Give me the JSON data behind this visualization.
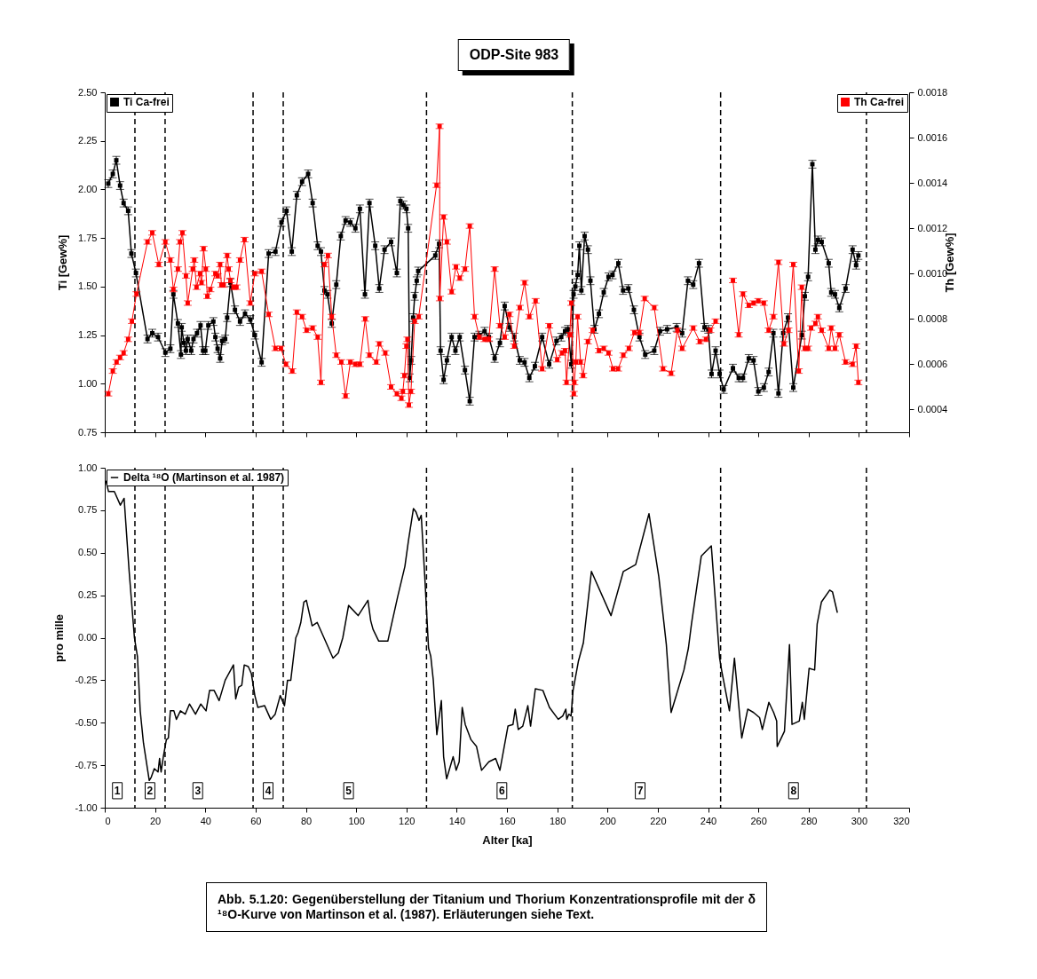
{
  "chart_data": [
    {
      "type": "line",
      "title": "ODP-Site 983",
      "ylabel": "Ti [Gew%]",
      "y2label": "Th [Gew%]",
      "xlim": [
        0,
        320
      ],
      "xticks": [
        0,
        20,
        40,
        60,
        80,
        100,
        120,
        140,
        160,
        180,
        200,
        220,
        240,
        260,
        280,
        300,
        320
      ],
      "ylim": [
        0.75,
        2.5
      ],
      "yticks": [
        0.75,
        {
          "value": 1,
          "label": "1.00"
        },
        1.25,
        {
          "value": 1.5,
          "label": "1.50"
        },
        1.75,
        {
          "value": 2,
          "label": "2.00"
        },
        2.25,
        {
          "value": 2.5,
          "label": "2.50"
        }
      ],
      "y2lim": [
        0.0003,
        0.0018
      ],
      "y2ticks": [
        0.0004,
        0.0006,
        0.0008,
        {
          "value": 0.001,
          "label": "0.0010"
        },
        0.0012,
        0.0014,
        0.0016,
        0.0018
      ],
      "tick_labels": "y",
      "legend": "top",
      "marker": "square",
      "line_style": "solid",
      "grid": false,
      "ref_lines": [
        {
          "axis": "x",
          "value": 12,
          "line_style": "dashed"
        },
        {
          "axis": "x",
          "value": 24,
          "line_style": "dashed"
        },
        {
          "axis": "x",
          "value": 59,
          "line_style": "dashed"
        },
        {
          "axis": "x",
          "value": 71,
          "line_style": "dashed"
        },
        {
          "axis": "x",
          "value": 128,
          "line_style": "dashed"
        },
        {
          "axis": "x",
          "value": 186,
          "line_style": "dashed"
        },
        {
          "axis": "x",
          "value": 245,
          "line_style": "dashed"
        },
        {
          "axis": "x",
          "value": 303,
          "line_style": "dashed"
        }
      ],
      "series": [
        {
          "name": "Ti Ca-frei",
          "color": "#000000",
          "x": [
            1.4,
            3.2,
            4.6,
            6.1,
            7.5,
            9.3,
            10.6,
            12.4,
            17.0,
            18.9,
            21.2,
            24.1,
            26.1,
            27.3,
            29.1,
            30.3,
            30.6,
            31.5,
            32.3,
            33.0,
            34.4,
            35.3,
            36.7,
            38.1,
            39.1,
            40.0,
            41.2,
            43.2,
            44.0,
            44.9,
            45.9,
            46.7,
            47.9,
            48.7,
            50.0,
            51.8,
            53.8,
            55.8,
            57.9,
            59.7,
            62.4,
            65.2,
            67.9,
            70.3,
            72.3,
            74.4,
            76.4,
            78.5,
            80.9,
            82.7,
            84.7,
            86.0,
            87.4,
            88.6,
            90.3,
            92.1,
            93.9,
            95.8,
            97.7,
            99.7,
            101.5,
            103.5,
            105.3,
            107.6,
            109.2,
            111.3,
            113.9,
            116.2,
            117.6,
            118.8,
            120.0,
            120.7,
            121.3,
            121.9,
            122.7,
            123.3,
            124.1,
            124.7,
            131.5,
            133.0,
            133.6,
            134.8,
            136.1,
            138.0,
            139.5,
            141.2,
            143.3,
            145.2,
            147.1,
            149.0,
            151.1,
            152.8,
            155.1,
            157.2,
            159.1,
            161.0,
            162.9,
            165.1,
            167.0,
            168.9,
            171.1,
            174.0,
            176.8,
            179.7,
            181.6,
            183.1,
            184.3,
            185.6,
            186.5,
            187.2,
            188.1,
            188.8,
            189.6,
            190.9,
            192.2,
            193.2,
            194.8,
            196.6,
            198.5,
            200.4,
            202.0,
            204.3,
            206.2,
            208.3,
            210.5,
            212.7,
            215.0,
            218.6,
            220.9,
            223.7,
            227.5,
            229.7,
            232.0,
            234.1,
            236.4,
            238.6,
            240.1,
            241.4,
            243.0,
            244.6,
            246.2,
            249.9,
            252.2,
            253.9,
            256.2,
            258.1,
            260.0,
            262.2,
            264.1,
            266.0,
            268.0,
            269.9,
            271.8,
            273.9,
            277.3,
            278.5,
            279.8,
            281.5,
            282.7,
            283.7,
            285.2,
            288.0,
            289.0,
            290.5,
            292.2,
            294.7,
            297.5,
            298.9,
            299.8
          ],
          "values": [
            2.03,
            2.08,
            2.15,
            2.02,
            1.93,
            1.89,
            1.67,
            1.57,
            1.23,
            1.26,
            1.24,
            1.16,
            1.18,
            1.46,
            1.31,
            1.15,
            1.29,
            1.21,
            1.17,
            1.23,
            1.17,
            1.23,
            1.26,
            1.3,
            1.17,
            1.17,
            1.3,
            1.32,
            1.24,
            1.18,
            1.13,
            1.22,
            1.23,
            1.34,
            1.52,
            1.38,
            1.32,
            1.36,
            1.33,
            1.25,
            1.11,
            1.67,
            1.68,
            1.83,
            1.89,
            1.68,
            1.97,
            2.04,
            2.08,
            1.93,
            1.71,
            1.68,
            1.48,
            1.46,
            1.31,
            1.51,
            1.76,
            1.84,
            1.83,
            1.8,
            1.9,
            1.46,
            1.93,
            1.71,
            1.49,
            1.69,
            1.73,
            1.57,
            1.94,
            1.92,
            1.9,
            1.8,
            1.03,
            1.12,
            1.34,
            1.45,
            1.53,
            1.58,
            1.66,
            1.72,
            1.17,
            1.02,
            1.12,
            1.24,
            1.17,
            1.24,
            1.07,
            0.91,
            1.24,
            1.25,
            1.27,
            1.24,
            1.13,
            1.21,
            1.4,
            1.29,
            1.24,
            1.12,
            1.11,
            1.03,
            1.09,
            1.24,
            1.1,
            1.22,
            1.24,
            1.27,
            1.28,
            1.1,
            1.46,
            1.5,
            1.56,
            1.71,
            1.48,
            1.76,
            1.69,
            1.53,
            1.28,
            1.36,
            1.47,
            1.55,
            1.56,
            1.62,
            1.48,
            1.49,
            1.38,
            1.24,
            1.15,
            1.17,
            1.27,
            1.28,
            1.29,
            1.26,
            1.53,
            1.51,
            1.62,
            1.29,
            1.28,
            1.05,
            1.17,
            1.05,
            0.97,
            1.08,
            1.03,
            1.03,
            1.13,
            1.12,
            0.96,
            0.98,
            1.06,
            1.26,
            0.95,
            1.26,
            1.34,
            0.98,
            1.25,
            1.45,
            1.55,
            2.13,
            1.69,
            1.74,
            1.73,
            1.62,
            1.47,
            1.46,
            1.39,
            1.49,
            1.69,
            1.61,
            1.66
          ],
          "errors": [
            0.02,
            0.02,
            0.02,
            0.02,
            0.02,
            0.02,
            0.02,
            0.02,
            0.02,
            0.02,
            0.02,
            0.02,
            0.02,
            0.02,
            0.02,
            0.02,
            0.02,
            0.02,
            0.02,
            0.02,
            0.02,
            0.02,
            0.02,
            0.02,
            0.02,
            0.02,
            0.02,
            0.02,
            0.02,
            0.02,
            0.02,
            0.02,
            0.02,
            0.02,
            0.02,
            0.02,
            0.02,
            0.02,
            0.02,
            0.02,
            0.02,
            0.02,
            0.02,
            0.02,
            0.02,
            0.02,
            0.02,
            0.02,
            0.02,
            0.02,
            0.02,
            0.02,
            0.02,
            0.02,
            0.02,
            0.02,
            0.02,
            0.02,
            0.02,
            0.02,
            0.02,
            0.02,
            0.02,
            0.02,
            0.02,
            0.02,
            0.02,
            0.02,
            0.02,
            0.02,
            0.02,
            0.02,
            0.02,
            0.02,
            0.02,
            0.02,
            0.02,
            0.02,
            0.02,
            0.02,
            0.02,
            0.02,
            0.02,
            0.02,
            0.02,
            0.02,
            0.02,
            0.02,
            0.02,
            0.02,
            0.02,
            0.02,
            0.02,
            0.02,
            0.02,
            0.02,
            0.02,
            0.02,
            0.02,
            0.02,
            0.02,
            0.02,
            0.02,
            0.02,
            0.02,
            0.02,
            0.02,
            0.02,
            0.02,
            0.02,
            0.02,
            0.02,
            0.02,
            0.02,
            0.02,
            0.02,
            0.02,
            0.02,
            0.02,
            0.02,
            0.02,
            0.02,
            0.02,
            0.02,
            0.02,
            0.02,
            0.02,
            0.02,
            0.02,
            0.02,
            0.02,
            0.02,
            0.02,
            0.02,
            0.02,
            0.02,
            0.02,
            0.02,
            0.02,
            0.02,
            0.02,
            0.02,
            0.02,
            0.02,
            0.02,
            0.02,
            0.02,
            0.02,
            0.02,
            0.02,
            0.02,
            0.02,
            0.02,
            0.02,
            0.02,
            0.02,
            0.02,
            0.02,
            0.02,
            0.02,
            0.02,
            0.02,
            0.02,
            0.02,
            0.02,
            0.02,
            0.02,
            0.02,
            0.02
          ]
        },
        {
          "name": "Th Ca-frei",
          "color": "#ff0000",
          "axis": "y2",
          "x": [
            1.4,
            3.2,
            4.7,
            6.1,
            7.5,
            9.3,
            10.8,
            12.6,
            17.0,
            18.9,
            21.5,
            24.1,
            26.1,
            27.3,
            29.1,
            29.9,
            30.9,
            32.3,
            33.0,
            35.0,
            35.6,
            36.5,
            37.9,
            38.5,
            39.3,
            40.2,
            40.8,
            42.0,
            44.0,
            44.9,
            45.9,
            46.4,
            47.3,
            48.7,
            49.3,
            50.0,
            51.2,
            52.4,
            53.8,
            55.6,
            57.9,
            59.7,
            62.4,
            65.2,
            67.9,
            70.1,
            72.1,
            74.6,
            76.4,
            78.5,
            80.3,
            82.7,
            84.7,
            86.0,
            87.4,
            88.8,
            90.3,
            92.1,
            94.1,
            95.8,
            97.7,
            99.7,
            101.5,
            103.6,
            105.3,
            108.0,
            109.2,
            111.6,
            113.9,
            116.2,
            118.0,
            118.6,
            119.2,
            120.0,
            120.4,
            121.0,
            121.8,
            123.3,
            124.9,
            132.0,
            133.2,
            133.3,
            134.8,
            136.1,
            138.0,
            139.7,
            141.2,
            143.3,
            145.2,
            147.1,
            149.0,
            151.1,
            152.8,
            155.1,
            157.2,
            159.1,
            161.0,
            162.9,
            165.1,
            167.0,
            168.9,
            171.4,
            174.0,
            176.8,
            180.0,
            181.9,
            183.1,
            183.7,
            185.0,
            185.6,
            186.6,
            186.8,
            187.4,
            188.1,
            189.3,
            190.3,
            192.2,
            194.1,
            196.6,
            198.5,
            200.4,
            202.2,
            204.2,
            206.3,
            208.5,
            210.7,
            212.7,
            214.8,
            218.6,
            222.1,
            225.3,
            227.8,
            229.7,
            234.1,
            236.7,
            239.2,
            240.9,
            243.0,
            247.0,
            249.9,
            252.2,
            253.9,
            256.2,
            258.1,
            260.0,
            262.2,
            264.1,
            266.0,
            268.0,
            270.2,
            272.0,
            273.9,
            276.1,
            277.3,
            278.5,
            279.8,
            281.0,
            282.7,
            283.7,
            285.2,
            288.0,
            289.0,
            290.5,
            292.2,
            294.7,
            297.5,
            298.9,
            299.8
          ],
          "values": [
            0.00047,
            0.00057,
            0.00061,
            0.00063,
            0.00065,
            0.00071,
            0.00079,
            0.00091,
            0.00114,
            0.00118,
            0.00104,
            0.00114,
            0.00106,
            0.00093,
            0.00102,
            0.00114,
            0.00118,
            0.00099,
            0.00087,
            0.00102,
            0.00106,
            0.00094,
            0.001,
            0.00096,
            0.00111,
            0.00102,
            0.0009,
            0.00093,
            0.001,
            0.00099,
            0.00104,
            0.00095,
            0.00095,
            0.00108,
            0.00102,
            0.00097,
            0.00094,
            0.00094,
            0.00106,
            0.00115,
            0.00087,
            0.001,
            0.00101,
            0.00082,
            0.00067,
            0.00067,
            0.0006,
            0.00057,
            0.00083,
            0.00081,
            0.00075,
            0.00076,
            0.00072,
            0.00052,
            0.00104,
            0.00108,
            0.00081,
            0.00064,
            0.00061,
            0.00046,
            0.00061,
            0.0006,
            0.0006,
            0.0008,
            0.00064,
            0.00061,
            0.00069,
            0.00065,
            0.0005,
            0.00047,
            0.00045,
            0.00048,
            0.00055,
            0.00068,
            0.00071,
            0.00042,
            0.00048,
            0.00079,
            0.00081,
            0.00139,
            0.00165,
            0.00089,
            0.00125,
            0.00114,
            0.00092,
            0.00103,
            0.00098,
            0.00102,
            0.00121,
            0.00081,
            0.00072,
            0.00071,
            0.00071,
            0.00102,
            0.00077,
            0.00072,
            0.00082,
            0.00068,
            0.00085,
            0.00096,
            0.00081,
            0.00088,
            0.00058,
            0.00077,
            0.00062,
            0.00065,
            0.00066,
            0.00052,
            0.00073,
            0.00087,
            0.00047,
            0.00052,
            0.00061,
            0.00081,
            0.00061,
            0.00055,
            0.0007,
            0.00075,
            0.00066,
            0.00067,
            0.00065,
            0.00058,
            0.00058,
            0.00064,
            0.00067,
            0.00074,
            0.00074,
            0.00089,
            0.00085,
            0.00058,
            0.00056,
            0.00075,
            0.00067,
            0.00076,
            0.0007,
            0.00071,
            0.00075,
            0.00079,
            null,
            0.00097,
            0.00073,
            0.00091,
            0.00086,
            0.00087,
            0.00088,
            0.00087,
            0.00075,
            0.00081,
            0.00105,
            0.00069,
            0.00075,
            0.00104,
            0.00057,
            0.00094,
            0.00067,
            0.00067,
            0.00076,
            0.00078,
            0.00081,
            0.00075,
            0.00067,
            0.00076,
            0.00067,
            0.00073,
            0.00061,
            0.0006,
            0.00068,
            0.00052
          ],
          "errors": [
            1e-05,
            1e-05,
            1e-05,
            1e-05,
            1e-05,
            1e-05,
            1e-05,
            1e-05,
            1e-05,
            1e-05,
            1e-05,
            1e-05,
            1e-05,
            1e-05,
            1e-05,
            1e-05,
            1e-05,
            1e-05,
            1e-05,
            1e-05,
            1e-05,
            1e-05,
            1e-05,
            1e-05,
            1e-05,
            1e-05,
            1e-05,
            1e-05,
            1e-05,
            1e-05,
            1e-05,
            1e-05,
            1e-05,
            1e-05,
            1e-05,
            1e-05,
            1e-05,
            1e-05,
            1e-05,
            1e-05,
            1e-05,
            1e-05,
            1e-05,
            1e-05,
            1e-05,
            1e-05,
            1e-05,
            1e-05,
            1e-05,
            1e-05,
            1e-05,
            1e-05,
            1e-05,
            1e-05,
            1e-05,
            1e-05,
            1e-05,
            1e-05,
            1e-05,
            1e-05,
            1e-05,
            1e-05,
            1e-05,
            1e-05,
            1e-05,
            1e-05,
            1e-05,
            1e-05,
            1e-05,
            1e-05,
            1e-05,
            1e-05,
            1e-05,
            1e-05,
            1e-05,
            1e-05,
            1e-05,
            1e-05,
            1e-05,
            1e-05,
            1e-05,
            1e-05,
            1e-05,
            1e-05,
            1e-05,
            1e-05,
            1e-05,
            1e-05,
            1e-05,
            1e-05,
            1e-05,
            1e-05,
            1e-05,
            1e-05,
            1e-05,
            1e-05,
            1e-05,
            1e-05,
            1e-05,
            1e-05,
            1e-05,
            1e-05,
            1e-05,
            1e-05,
            1e-05,
            1e-05,
            1e-05,
            1e-05,
            1e-05,
            1e-05,
            1e-05,
            1e-05,
            1e-05,
            1e-05,
            1e-05,
            1e-05,
            1e-05,
            1e-05,
            1e-05,
            1e-05,
            1e-05,
            1e-05,
            1e-05,
            1e-05,
            1e-05,
            1e-05,
            1e-05,
            1e-05,
            1e-05,
            1e-05,
            1e-05,
            1e-05,
            1e-05,
            1e-05,
            1e-05,
            1e-05,
            1e-05,
            1e-05,
            null,
            1e-05,
            1e-05,
            1e-05,
            1e-05,
            1e-05,
            1e-05,
            1e-05,
            1e-05,
            1e-05,
            1e-05,
            1e-05,
            1e-05,
            1e-05,
            1e-05,
            1e-05,
            1e-05,
            1e-05,
            1e-05,
            1e-05,
            1e-05,
            1e-05,
            1e-05,
            1e-05,
            1e-05,
            1e-05,
            1e-05,
            1e-05,
            1e-05,
            1e-05
          ]
        }
      ]
    },
    {
      "type": "line",
      "xlabel": "Alter [ka]",
      "ylabel": "pro mille",
      "xlim": [
        0,
        320
      ],
      "xticks": [
        0,
        20,
        40,
        60,
        80,
        100,
        120,
        140,
        160,
        180,
        200,
        220,
        240,
        260,
        280,
        300,
        320
      ],
      "ylim": [
        -1,
        1
      ],
      "yticks": [
        {
          "value": -1,
          "label": "-1.00"
        },
        -0.75,
        {
          "value": -0.5,
          "label": "-0.50"
        },
        -0.25,
        {
          "value": 0,
          "label": "0.00"
        },
        0.25,
        {
          "value": 0.5,
          "label": "0.50"
        },
        0.75,
        {
          "value": 1,
          "label": "1.00"
        }
      ],
      "legend": "top left",
      "line_style": "solid",
      "grid": false,
      "ref_lines": [
        {
          "axis": "x",
          "value": 12,
          "line_style": "dashed"
        },
        {
          "axis": "x",
          "value": 24,
          "line_style": "dashed"
        },
        {
          "axis": "x",
          "value": 59,
          "line_style": "dashed"
        },
        {
          "axis": "x",
          "value": 71,
          "line_style": "dashed"
        },
        {
          "axis": "x",
          "value": 128,
          "line_style": "dashed"
        },
        {
          "axis": "x",
          "value": 186,
          "line_style": "dashed"
        },
        {
          "axis": "x",
          "value": 245,
          "line_style": "dashed"
        },
        {
          "axis": "x",
          "value": 303,
          "line_style": "dashed"
        }
      ],
      "annotations": [
        {
          "text": "1",
          "x": 5,
          "y": -0.9
        },
        {
          "text": "2",
          "x": 18,
          "y": -0.9
        },
        {
          "text": "3",
          "x": 37,
          "y": -0.9
        },
        {
          "text": "4",
          "x": 65,
          "y": -0.9
        },
        {
          "text": "5",
          "x": 97,
          "y": -0.9
        },
        {
          "text": "6",
          "x": 158,
          "y": -0.9
        },
        {
          "text": "7",
          "x": 213,
          "y": -0.9
        },
        {
          "text": "8",
          "x": 274,
          "y": -0.9
        },
        "Abb. 5.1.20: Gegenüberstellung der Titanium und Thorium Konzentrationsprofile mit der δ ¹⁸O-Kurve von Martinson et al. (1987). Erläuterungen siehe Text."
      ],
      "series": [
        {
          "name": "Delta ¹⁸O (Martinson et al. 1987)",
          "color": "#000000",
          "x": [
            0.5,
            1.5,
            3.8,
            6.2,
            7.7,
            9.7,
            11.8,
            13.0,
            14.1,
            15.4,
            17.7,
            18.5,
            19.7,
            21.2,
            21.8,
            22.4,
            23.3,
            24.5,
            25.3,
            26.1,
            27.5,
            28.5,
            30.1,
            32.0,
            33.7,
            36.1,
            38.2,
            40.3,
            41.7,
            43.5,
            45.5,
            47.9,
            51.2,
            52.1,
            53.3,
            54.5,
            55.5,
            57.1,
            58.3,
            59.7,
            60.9,
            63.6,
            66.0,
            67.8,
            69.8,
            71.5,
            72.7,
            74.0,
            76.0,
            76.9,
            78.0,
            79.2,
            80.2,
            82.5,
            84.5,
            90.8,
            92.9,
            94.7,
            97.0,
            100.8,
            104.7,
            105.8,
            106.7,
            109.0,
            112.6,
            116.5,
            119.4,
            120.8,
            122.8,
            123.8,
            125.0,
            125.9,
            127.3,
            128.8,
            129.7,
            130.7,
            132.1,
            133.9,
            134.8,
            136.0,
            138.6,
            139.8,
            141.0,
            142.2,
            143.4,
            145.7,
            147.9,
            149.9,
            152.8,
            155.5,
            157.2,
            160.4,
            162.4,
            163.3,
            164.5,
            166.3,
            168.3,
            169.4,
            171.3,
            174.3,
            176.9,
            180.4,
            182.2,
            183.4,
            183.8,
            184.6,
            185.5,
            186.3,
            188.4,
            190.4,
            193.6,
            201.4,
            206.3,
            211.2,
            216.5,
            220.4,
            223.4,
            225.3,
            230.4,
            232.2,
            233.4,
            237.3,
            241.3,
            244.6,
            245.5,
            248.5,
            250.5,
            253.4,
            255.8,
            258.1,
            260.5,
            261.6,
            264.2,
            266.1,
            267.3,
            267.5,
            270.4,
            272.4,
            273.4,
            276.3,
            277.5,
            278.3,
            280.2,
            282.4,
            283.4,
            285.1,
            288.4,
            289.5,
            291.4
          ],
          "values": [
            0.92,
            0.86,
            0.86,
            0.78,
            0.82,
            0.39,
            0,
            -0.11,
            -0.43,
            -0.62,
            -0.84,
            -0.82,
            -0.77,
            -0.79,
            -0.71,
            -0.79,
            -0.7,
            -0.6,
            -0.59,
            -0.43,
            -0.43,
            -0.48,
            -0.43,
            -0.45,
            -0.39,
            -0.45,
            -0.39,
            -0.43,
            -0.31,
            -0.31,
            -0.37,
            -0.25,
            -0.16,
            -0.36,
            -0.29,
            -0.28,
            -0.16,
            -0.17,
            -0.21,
            -0.34,
            -0.41,
            -0.4,
            -0.48,
            -0.45,
            -0.34,
            -0.4,
            -0.25,
            -0.25,
            0,
            0.03,
            0.09,
            0.21,
            0.22,
            0.07,
            0.09,
            -0.12,
            -0.09,
            0,
            0.19,
            0.13,
            0.22,
            0.1,
            0.05,
            -0.02,
            -0.02,
            0.24,
            0.42,
            0.57,
            0.76,
            0.74,
            0.69,
            0.72,
            0.36,
            -0.06,
            -0.11,
            -0.25,
            -0.57,
            -0.37,
            -0.7,
            -0.83,
            -0.7,
            -0.78,
            -0.73,
            -0.41,
            -0.51,
            -0.6,
            -0.64,
            -0.78,
            -0.73,
            -0.71,
            -0.78,
            -0.52,
            -0.51,
            -0.42,
            -0.54,
            -0.52,
            -0.4,
            -0.52,
            -0.3,
            -0.31,
            -0.41,
            -0.48,
            -0.46,
            -0.42,
            -0.48,
            -0.45,
            -0.46,
            -0.31,
            -0.14,
            -0.03,
            0.39,
            0.13,
            0.39,
            0.43,
            0.73,
            0.36,
            -0.04,
            -0.44,
            -0.19,
            -0.06,
            0.08,
            0.48,
            0.54,
            -0.12,
            -0.2,
            -0.43,
            -0.12,
            -0.59,
            -0.42,
            -0.44,
            -0.47,
            -0.54,
            -0.38,
            -0.44,
            -0.49,
            -0.64,
            -0.55,
            -0.04,
            -0.51,
            -0.49,
            -0.38,
            -0.48,
            -0.18,
            -0.19,
            0.08,
            0.21,
            0.28,
            0.27,
            0.15
          ]
        }
      ]
    }
  ]
}
